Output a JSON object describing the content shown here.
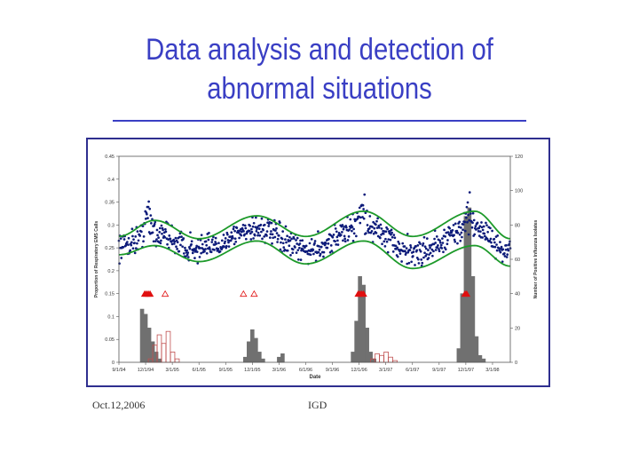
{
  "slide": {
    "title_line1": "Data analysis and detection of",
    "title_line2": "abnormal situations",
    "footer_date": "Oct.12,2006",
    "footer_org": "IGD"
  },
  "colors": {
    "title": "#3a3fc4",
    "frame": "#2f2f8f",
    "points": "#0d1b7a",
    "bands": "#1d9a2a",
    "bars": "#707070",
    "secondary_line": "#c05050",
    "alerts": "#e01010"
  },
  "chart_data": {
    "type": "scatter",
    "xlabel": "Date",
    "ylabel_left": "Proportion of Respiratory EMS Calls",
    "ylabel_right": "Number of Positive Influenza Isolates",
    "ylim_left": [
      0,
      0.45
    ],
    "ylim_right": [
      0,
      120
    ],
    "yticks_left": [
      "0",
      "0.05",
      "0.1",
      "0.15",
      "0.2",
      "0.25",
      "0.3",
      "0.35",
      "0.4",
      "0.45"
    ],
    "yticks_right": [
      "0",
      "20",
      "40",
      "60",
      "80",
      "100",
      "120"
    ],
    "xticks": [
      "9/1/94",
      "12/1/94",
      "3/1/95",
      "6/1/95",
      "9/1/95",
      "12/1/95",
      "3/1/96",
      "6/1/96",
      "9/1/96",
      "12/1/96",
      "3/1/97",
      "6/1/97",
      "9/1/97",
      "12/1/97",
      "3/1/98"
    ],
    "x_range_months": [
      0,
      44
    ],
    "ems_points": {
      "description_free": true,
      "peaks": [
        {
          "month": 3.3,
          "value": 0.37
        },
        {
          "month": 15.2,
          "value": 0.32
        },
        {
          "month": 27.3,
          "value": 0.385
        },
        {
          "month": 39.3,
          "value": 0.37
        }
      ],
      "seasonal_mean_low": 0.25,
      "seasonal_mean_high": 0.295
    },
    "upper_band": [
      {
        "month": 0,
        "value": 0.275
      },
      {
        "month": 4,
        "value": 0.31
      },
      {
        "month": 9,
        "value": 0.27
      },
      {
        "month": 15.5,
        "value": 0.32
      },
      {
        "month": 21,
        "value": 0.275
      },
      {
        "month": 27.5,
        "value": 0.33
      },
      {
        "month": 33,
        "value": 0.275
      },
      {
        "month": 40,
        "value": 0.33
      },
      {
        "month": 44,
        "value": 0.27
      }
    ],
    "lower_band": [
      {
        "month": 0,
        "value": 0.235
      },
      {
        "month": 4,
        "value": 0.255
      },
      {
        "month": 9,
        "value": 0.22
      },
      {
        "month": 15.5,
        "value": 0.265
      },
      {
        "month": 21,
        "value": 0.215
      },
      {
        "month": 27.5,
        "value": 0.265
      },
      {
        "month": 33,
        "value": 0.205
      },
      {
        "month": 40,
        "value": 0.255
      },
      {
        "month": 44,
        "value": 0.21
      }
    ],
    "influenza_isolates": [
      {
        "month": 2.6,
        "value": 31
      },
      {
        "month": 3.0,
        "value": 28
      },
      {
        "month": 3.4,
        "value": 20
      },
      {
        "month": 3.8,
        "value": 12
      },
      {
        "month": 4.2,
        "value": 6
      },
      {
        "month": 4.6,
        "value": 2
      },
      {
        "month": 14.2,
        "value": 3
      },
      {
        "month": 14.6,
        "value": 12
      },
      {
        "month": 15.0,
        "value": 19
      },
      {
        "month": 15.4,
        "value": 14
      },
      {
        "month": 15.8,
        "value": 6
      },
      {
        "month": 16.2,
        "value": 2
      },
      {
        "month": 18.0,
        "value": 3
      },
      {
        "month": 18.4,
        "value": 5
      },
      {
        "month": 26.3,
        "value": 6
      },
      {
        "month": 26.7,
        "value": 24
      },
      {
        "month": 27.1,
        "value": 50
      },
      {
        "month": 27.5,
        "value": 45
      },
      {
        "month": 27.9,
        "value": 20
      },
      {
        "month": 28.3,
        "value": 6
      },
      {
        "month": 28.7,
        "value": 2
      },
      {
        "month": 38.2,
        "value": 8
      },
      {
        "month": 38.6,
        "value": 40
      },
      {
        "month": 39.0,
        "value": 85
      },
      {
        "month": 39.4,
        "value": 90
      },
      {
        "month": 39.8,
        "value": 50
      },
      {
        "month": 40.2,
        "value": 15
      },
      {
        "month": 40.6,
        "value": 4
      },
      {
        "month": 41.0,
        "value": 2
      }
    ],
    "secondary_series": [
      {
        "month": 3.5,
        "value": 2
      },
      {
        "month": 4.0,
        "value": 10
      },
      {
        "month": 4.5,
        "value": 16
      },
      {
        "month": 5.0,
        "value": 11
      },
      {
        "month": 5.5,
        "value": 18
      },
      {
        "month": 6.0,
        "value": 6
      },
      {
        "month": 6.5,
        "value": 2
      },
      {
        "month": 28.5,
        "value": 2
      },
      {
        "month": 29.0,
        "value": 5
      },
      {
        "month": 29.5,
        "value": 4
      },
      {
        "month": 30.0,
        "value": 6
      },
      {
        "month": 30.5,
        "value": 3
      },
      {
        "month": 31.0,
        "value": 1
      }
    ],
    "alert_markers_filled": [
      2.9,
      3.1,
      3.3,
      3.5,
      26.9,
      27.1,
      27.3,
      27.5,
      38.9,
      39.1
    ],
    "alert_markers_open": [
      5.2,
      14.0,
      15.2
    ],
    "alert_level": 0.15
  }
}
